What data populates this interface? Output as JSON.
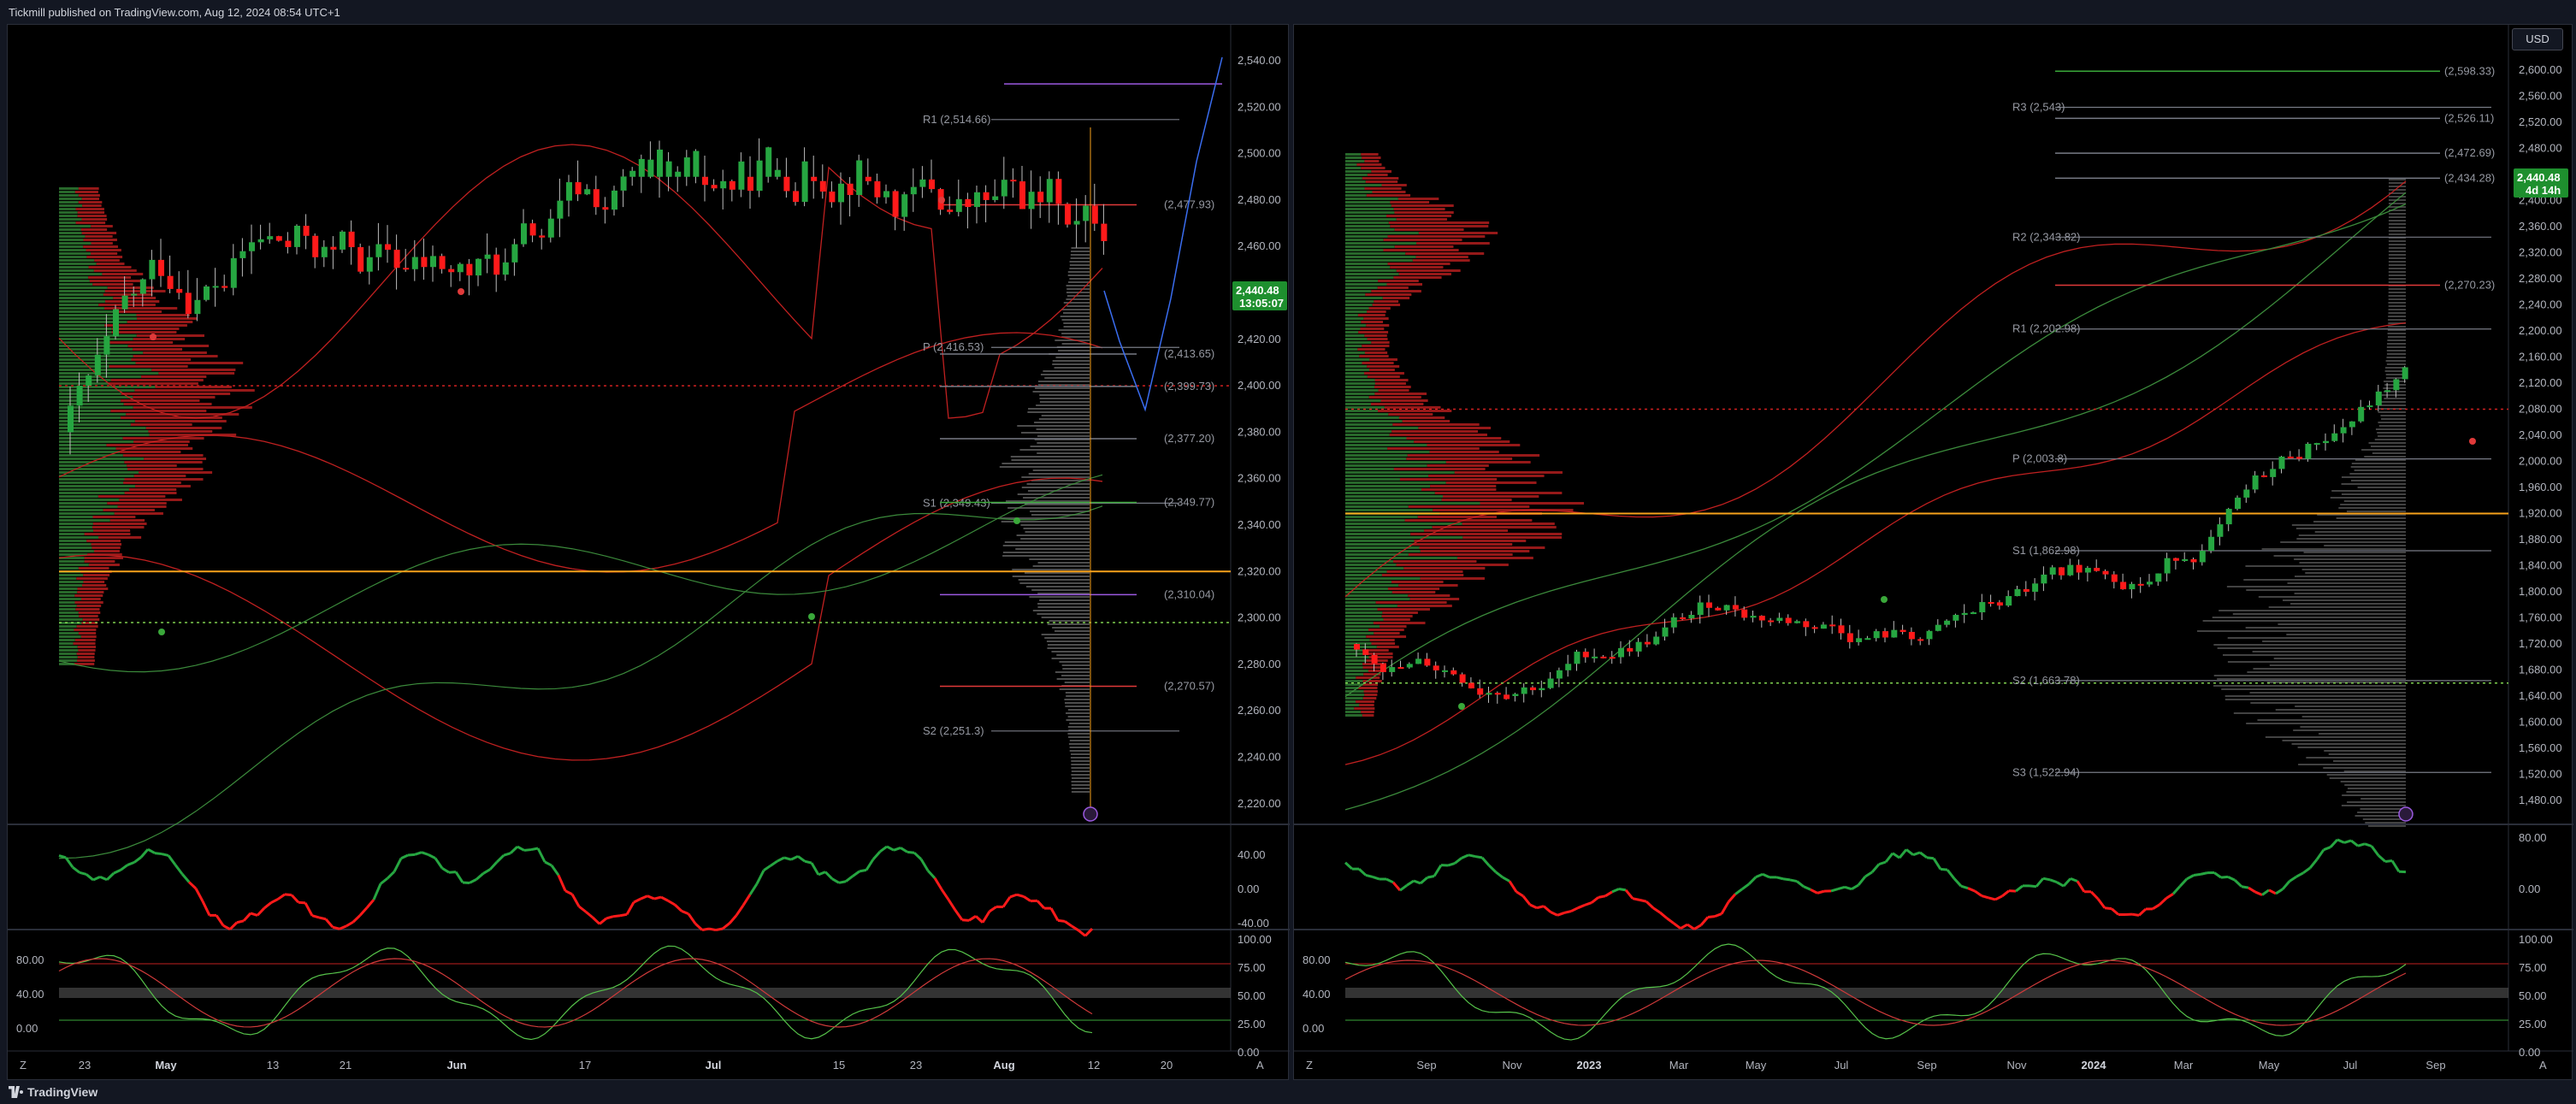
{
  "header": {
    "published_text": "Tickmill published on TradingView.com, Aug 12, 2024 08:54 UTC+1"
  },
  "footer": {
    "brand": "TradingView"
  },
  "colors": {
    "up": "#26a641",
    "down": "#ff1a1a",
    "pivot": "#787b86",
    "vwap": "#f7a21b",
    "band": "#c02020",
    "ma": "#3b8a3b"
  },
  "left_chart": {
    "price_ticks": [
      "2,540.00",
      "2,520.00",
      "2,500.00",
      "2,480.00",
      "2,460.00",
      "2,440.00",
      "2,420.00",
      "2,400.00",
      "2,380.00",
      "2,360.00",
      "2,340.00",
      "2,320.00",
      "2,300.00",
      "2,280.00",
      "2,260.00",
      "2,240.00",
      "2,220.00"
    ],
    "price_badge": {
      "value": "2,440.48",
      "countdown": "13:05:07"
    },
    "pivot_labels": [
      "R1 (2,514.66)",
      "P (2,416.53)",
      "S1 (2,349.43)",
      "S2 (2,251.3)"
    ],
    "right_levels": [
      "(2,477.93)",
      "(2,413.65)",
      "(2,399.73)",
      "(2,377.20)",
      "(2,349.77)",
      "(2,310.04)",
      "(2,270.57)"
    ],
    "osc1_ticks": [
      "40.00",
      "0.00",
      "-40.00"
    ],
    "osc2_ticks": [
      "100.00",
      "75.00",
      "50.00",
      "25.00",
      "0.00"
    ],
    "osc2_left_ticks": [
      "80.00",
      "40.00",
      "0.00"
    ],
    "time_labels": [
      "23",
      "May",
      "13",
      "21",
      "Jun",
      "17",
      "Jul",
      "15",
      "23",
      "Aug",
      "12",
      "20"
    ],
    "time_label_bold": [
      "May",
      "Jun",
      "Jul",
      "Aug"
    ],
    "corner": "A",
    "left_corner": "Z"
  },
  "right_chart": {
    "currency": "USD",
    "price_ticks": [
      "2,600.00",
      "2,560.00",
      "2,520.00",
      "2,480.00",
      "2,400.00",
      "2,360.00",
      "2,320.00",
      "2,280.00",
      "2,240.00",
      "2,200.00",
      "2,160.00",
      "2,120.00",
      "2,080.00",
      "2,040.00",
      "2,000.00",
      "1,960.00",
      "1,920.00",
      "1,880.00",
      "1,840.00",
      "1,800.00",
      "1,760.00",
      "1,720.00",
      "1,680.00",
      "1,640.00",
      "1,600.00",
      "1,560.00",
      "1,520.00",
      "1,480.00"
    ],
    "price_badge": {
      "value": "2,440.48",
      "countdown": "4d 14h"
    },
    "pivot_labels": [
      "R3 (2,543)",
      "R2 (2,343.82)",
      "R1 (2,202.98)",
      "P (2,003.8)",
      "S1 (1,862.98)",
      "S2 (1,663.78)",
      "S3 (1,522.94)"
    ],
    "right_levels": [
      "(2,598.33)",
      "(2,526.11)",
      "(2,472.69)",
      "(2,434.28)",
      "(2,270.23)"
    ],
    "osc1_ticks": [
      "80.00",
      "0.00"
    ],
    "osc2_ticks": [
      "100.00",
      "75.00",
      "50.00",
      "25.00",
      "0.00"
    ],
    "osc2_left_ticks": [
      "80.00",
      "40.00",
      "0.00"
    ],
    "time_labels": [
      "Sep",
      "Nov",
      "2023",
      "Mar",
      "May",
      "Jul",
      "Sep",
      "Nov",
      "2024",
      "Mar",
      "May",
      "Jul",
      "Sep"
    ],
    "time_label_bold": [
      "2023",
      "2024"
    ],
    "corner": "A",
    "left_corner": "Z"
  }
}
